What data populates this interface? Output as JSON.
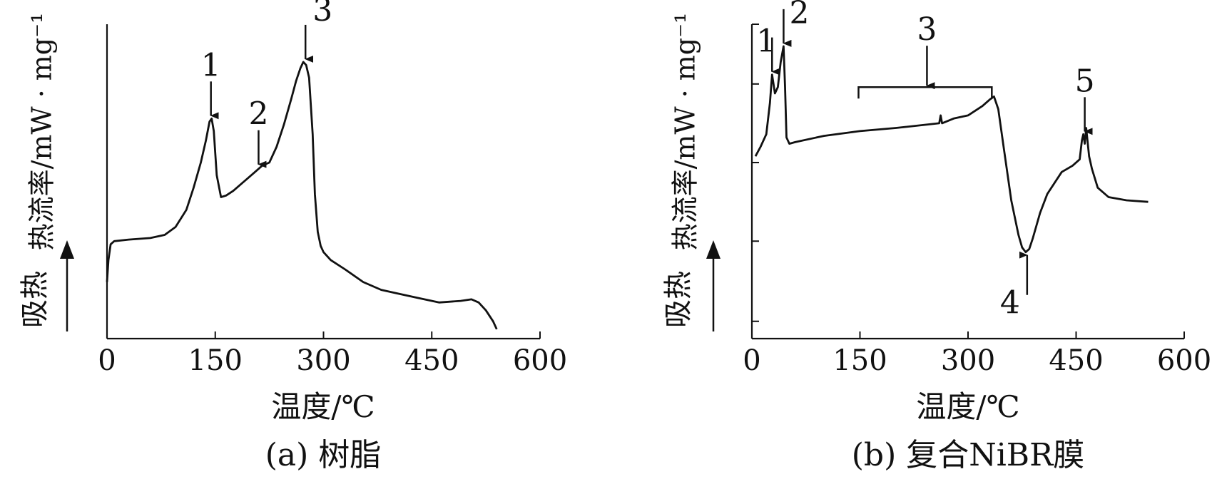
{
  "chart_data": [
    {
      "type": "line",
      "caption": "(a) 树脂",
      "xlabel": "温度/℃",
      "ylabel": "热流率/mW · mg⁻¹",
      "endo_label": "吸热",
      "xlim": [
        0,
        600
      ],
      "xticks": [
        0,
        150,
        300,
        450,
        600
      ],
      "ylim": [
        0,
        10
      ],
      "y_tick_labels": false,
      "series": [
        {
          "x": [
            0,
            2,
            5,
            10,
            30,
            60,
            80,
            95,
            110,
            120,
            130,
            137,
            142,
            145,
            148,
            152,
            158,
            165,
            175,
            190,
            205,
            215,
            225,
            235,
            245,
            255,
            262,
            268,
            272,
            276,
            280,
            285,
            288,
            292,
            296,
            300,
            310,
            330,
            355,
            380,
            400,
            430,
            460,
            490,
            505,
            515,
            525,
            535,
            540
          ],
          "y": [
            1.8,
            2.5,
            3.0,
            3.1,
            3.15,
            3.2,
            3.3,
            3.55,
            4.1,
            4.8,
            5.6,
            6.3,
            6.9,
            7.0,
            6.6,
            5.2,
            4.5,
            4.55,
            4.7,
            5.0,
            5.3,
            5.5,
            5.6,
            6.1,
            6.8,
            7.6,
            8.2,
            8.6,
            8.8,
            8.7,
            8.3,
            6.5,
            4.6,
            3.4,
            2.95,
            2.75,
            2.5,
            2.2,
            1.8,
            1.55,
            1.45,
            1.3,
            1.15,
            1.2,
            1.25,
            1.15,
            0.9,
            0.55,
            0.3
          ]
        }
      ],
      "peaks": [
        {
          "label": "1",
          "x": 144,
          "y": 7.0,
          "arrow": "down"
        },
        {
          "label": "2",
          "x": 210,
          "y": 5.45,
          "arrow": "down"
        },
        {
          "label": "3",
          "x": 275,
          "y": 8.8,
          "arrow": "down"
        }
      ]
    },
    {
      "type": "line",
      "caption": "(b) 复合NiBR膜",
      "xlabel": "温度/℃",
      "ylabel": "热流率/mW · mg⁻¹",
      "endo_label": "吸热",
      "xlim": [
        0,
        600
      ],
      "xticks": [
        0,
        150,
        300,
        450,
        600
      ],
      "ylim": [
        0,
        10
      ],
      "y_tick_labels": false,
      "series": [
        {
          "x": [
            5,
            12,
            20,
            25,
            28,
            32,
            36,
            40,
            44,
            46,
            48,
            52,
            60,
            100,
            150,
            200,
            260,
            262,
            264,
            280,
            300,
            320,
            330,
            336,
            342,
            350,
            360,
            370,
            375,
            380,
            385,
            390,
            400,
            410,
            430,
            445,
            455,
            458,
            460,
            462,
            464,
            468,
            472,
            480,
            495,
            520,
            550
          ],
          "y": [
            5.8,
            6.1,
            6.5,
            7.5,
            8.4,
            7.8,
            8.0,
            8.8,
            9.3,
            8.0,
            6.4,
            6.2,
            6.25,
            6.45,
            6.6,
            6.7,
            6.85,
            7.1,
            6.85,
            7.0,
            7.1,
            7.4,
            7.6,
            7.7,
            7.3,
            6.0,
            4.4,
            3.3,
            2.9,
            2.75,
            2.85,
            3.2,
            4.0,
            4.6,
            5.3,
            5.5,
            5.7,
            6.3,
            6.5,
            6.2,
            6.7,
            5.8,
            5.4,
            4.8,
            4.5,
            4.4,
            4.35
          ]
        }
      ],
      "peaks": [
        {
          "label": "1",
          "x": 28,
          "y": 8.4,
          "arrow": "down"
        },
        {
          "label": "2",
          "x": 44,
          "y": 9.3,
          "arrow": "down"
        },
        {
          "label": "3",
          "x": 243,
          "y": 8.0,
          "arrow": "down",
          "bracket": [
            148,
            333
          ]
        },
        {
          "label": "4",
          "x": 382,
          "y": 2.75,
          "arrow": "up"
        },
        {
          "label": "5",
          "x": 462,
          "y": 6.5,
          "arrow": "down"
        }
      ]
    }
  ]
}
